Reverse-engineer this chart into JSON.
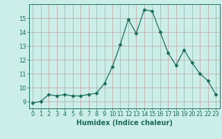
{
  "x": [
    0,
    1,
    2,
    3,
    4,
    5,
    6,
    7,
    8,
    9,
    10,
    11,
    12,
    13,
    14,
    15,
    16,
    17,
    18,
    19,
    20,
    21,
    22,
    23
  ],
  "y": [
    8.9,
    9.0,
    9.5,
    9.4,
    9.5,
    9.4,
    9.4,
    9.5,
    9.6,
    10.3,
    11.5,
    13.1,
    14.9,
    13.9,
    15.6,
    15.5,
    14.0,
    12.5,
    11.6,
    12.7,
    11.8,
    11.0,
    10.5,
    9.5
  ],
  "line_color": "#1a6b5a",
  "marker": "D",
  "marker_size": 2.5,
  "bg_color": "#cceee8",
  "grid_color": "#c0a0a0",
  "xlabel": "Humidex (Indice chaleur)",
  "xlim": [
    -0.5,
    23.5
  ],
  "ylim": [
    8.5,
    16.0
  ],
  "yticks": [
    9,
    10,
    11,
    12,
    13,
    14,
    15
  ],
  "xticks": [
    0,
    1,
    2,
    3,
    4,
    5,
    6,
    7,
    8,
    9,
    10,
    11,
    12,
    13,
    14,
    15,
    16,
    17,
    18,
    19,
    20,
    21,
    22,
    23
  ],
  "label_fontsize": 7,
  "tick_fontsize": 6,
  "text_color": "#1a6b5a"
}
